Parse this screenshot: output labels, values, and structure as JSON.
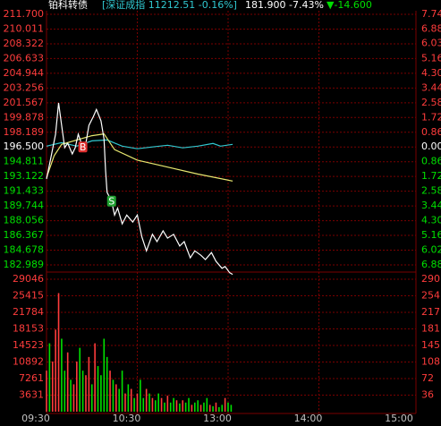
{
  "chart_data": {
    "type": "stock-intraday",
    "header": {
      "name": "铂科转债",
      "index_text": "[深证成指 11212.51 -0.16%]",
      "price_text": "181.900 -7.43%",
      "change_text": "▼-14.600"
    },
    "up_color": "#ff3c3c",
    "down_color": "#00e000",
    "flat_color": "#ffffff",
    "grid_color": "#7a0000",
    "xlim": [
      0,
      240
    ],
    "xticks": [
      {
        "value": 0,
        "label": "09:30"
      },
      {
        "value": 60,
        "label": "10:30"
      },
      {
        "value": 120,
        "label": "13:00"
      },
      {
        "value": 180,
        "label": "14:00"
      },
      {
        "value": 240,
        "label": "15:00"
      }
    ],
    "ylim": [
      182.989,
      211.7
    ],
    "yticks": [
      {
        "value": 211.7,
        "label": "211.700"
      },
      210.011,
      208.322,
      206.633,
      204.944,
      203.256,
      201.567,
      199.878,
      198.189,
      {
        "value": 196.5,
        "label": "196.500"
      },
      194.811,
      193.122,
      191.433,
      189.744,
      188.056,
      186.367,
      184.678,
      182.989
    ],
    "y2lim": [
      -6.88,
      7.74
    ],
    "y2ticks": [
      7.74,
      6.88,
      6.03,
      5.16,
      {
        "value": 4.3,
        "label": "4.30"
      },
      3.44,
      2.58,
      1.72,
      0.86,
      {
        "value": 0,
        "label": "0.00"
      },
      {
        "value": -0.86,
        "label": "0.86"
      },
      {
        "value": -1.72,
        "label": "1.72"
      },
      {
        "value": -2.58,
        "label": "2.58"
      },
      {
        "value": -3.44,
        "label": "3.44"
      },
      {
        "value": -4.3,
        "label": "4.30"
      },
      {
        "value": -5.16,
        "label": "5.16"
      },
      {
        "value": -6.02,
        "label": "6.02"
      },
      {
        "value": -6.88,
        "label": "6.88"
      }
    ],
    "series": [
      {
        "color": "#ffffff",
        "x": [
          0,
          3,
          6,
          8,
          10,
          12,
          14,
          17,
          19,
          21,
          24,
          26,
          28,
          31,
          33,
          36,
          38,
          39,
          40,
          43,
          45,
          47,
          50,
          53,
          57,
          60,
          63,
          66,
          70,
          73,
          77,
          80,
          84,
          88,
          91,
          95,
          98,
          102,
          105,
          109,
          112,
          116,
          118,
          121,
          123
        ],
        "values": [
          192.83,
          195.4,
          197.96,
          201.55,
          198.98,
          196.42,
          196.93,
          195.7,
          196.42,
          197.96,
          196.42,
          196.93,
          198.98,
          200.0,
          200.8,
          199.5,
          197.4,
          193.85,
          191.3,
          190.3,
          188.7,
          189.5,
          187.7,
          188.7,
          187.9,
          188.7,
          186.2,
          184.6,
          186.5,
          185.65,
          186.9,
          186.05,
          186.5,
          185.15,
          185.65,
          183.8,
          184.6,
          184.1,
          183.6,
          184.4,
          183.4,
          182.6,
          182.8,
          182.1,
          181.9
        ]
      },
      {
        "color": "#e8e870",
        "x": [
          0,
          5,
          10,
          20,
          30,
          38,
          45,
          60,
          80,
          100,
          123
        ],
        "values": [
          193.0,
          195.5,
          196.8,
          197.3,
          197.8,
          198.0,
          196.2,
          195.0,
          194.2,
          193.4,
          192.6
        ]
      },
      {
        "color": "#30c8d0",
        "x": [
          0,
          5,
          10,
          20,
          30,
          40,
          50,
          60,
          70,
          80,
          90,
          100,
          110,
          115,
          123
        ],
        "values": [
          196.6,
          196.8,
          197.0,
          196.6,
          197.2,
          197.3,
          196.6,
          196.3,
          196.5,
          196.7,
          196.4,
          196.6,
          196.9,
          196.6,
          196.8
        ]
      }
    ],
    "annotations": [
      {
        "label": "B",
        "x": 24,
        "y": 196.5,
        "color": "#e03030"
      },
      {
        "label": "S",
        "x": 43,
        "y": 190.3,
        "color": "#20a030"
      }
    ],
    "volume": {
      "ylim": [
        0,
        29046
      ],
      "yticks": [
        29046,
        25415,
        21784,
        18153,
        14523,
        10892,
        7261,
        3631
      ],
      "y2ticks": [
        {
          "value": 29046,
          "label": "290"
        },
        {
          "value": 25415,
          "label": "254"
        },
        {
          "value": 21784,
          "label": "217"
        },
        {
          "value": 18153,
          "label": "181"
        },
        {
          "value": 14523,
          "label": "145"
        },
        {
          "value": 10892,
          "label": "108"
        },
        {
          "value": 7261,
          "label": "72"
        },
        {
          "value": 3631,
          "label": "36"
        }
      ],
      "x": [
        0,
        2,
        4,
        6,
        8,
        10,
        12,
        14,
        16,
        18,
        20,
        22,
        24,
        26,
        28,
        30,
        32,
        34,
        36,
        38,
        40,
        42,
        44,
        46,
        48,
        50,
        52,
        54,
        56,
        58,
        60,
        62,
        64,
        66,
        68,
        70,
        72,
        74,
        76,
        78,
        80,
        82,
        84,
        86,
        88,
        90,
        92,
        94,
        96,
        98,
        100,
        102,
        104,
        106,
        108,
        110,
        112,
        114,
        116,
        118,
        120,
        122
      ],
      "values": [
        9000,
        15000,
        11000,
        18000,
        26000,
        16000,
        9000,
        13000,
        7000,
        6000,
        11000,
        14000,
        9000,
        8000,
        12000,
        6000,
        15000,
        10000,
        8000,
        16000,
        12000,
        9000,
        7000,
        6000,
        5000,
        9000,
        4000,
        6000,
        5000,
        3000,
        4000,
        7000,
        3000,
        5000,
        4000,
        3000,
        2500,
        4000,
        3000,
        2000,
        3500,
        2000,
        3000,
        2500,
        1800,
        2500,
        2000,
        3000,
        1500,
        2000,
        2500,
        1500,
        2000,
        3000,
        1500,
        1200,
        2000,
        1000,
        1500,
        3000,
        2000,
        1500
      ],
      "colors": [
        "#ff3c3c",
        "#00e000",
        "#ff3c3c",
        "#ff3c3c",
        "#ff3c3c",
        "#00e000",
        "#00e000",
        "#ff3c3c",
        "#00e000",
        "#ff3c3c",
        "#ff3c3c",
        "#00e000",
        "#00e000",
        "#ff3c3c",
        "#ff3c3c",
        "#00e000",
        "#ff3c3c",
        "#00e000",
        "#00e000",
        "#00e000",
        "#00e000",
        "#ff3c3c",
        "#00e000",
        "#ff3c3c",
        "#00e000",
        "#00e000",
        "#ff3c3c",
        "#00e000",
        "#ff3c3c",
        "#00e000",
        "#ff3c3c",
        "#00e000",
        "#00e000",
        "#ff3c3c",
        "#00e000",
        "#ff3c3c",
        "#00e000",
        "#00e000",
        "#ff3c3c",
        "#00e000",
        "#ff3c3c",
        "#00e000",
        "#00e000",
        "#ff3c3c",
        "#00e000",
        "#ff3c3c",
        "#00e000",
        "#00e000",
        "#ff3c3c",
        "#00e000",
        "#00e000",
        "#ff3c3c",
        "#00e000",
        "#00e000",
        "#ff3c3c",
        "#00e000",
        "#ff3c3c",
        "#00e000",
        "#00e000",
        "#ff3c3c",
        "#00e000",
        "#00e000"
      ]
    }
  }
}
